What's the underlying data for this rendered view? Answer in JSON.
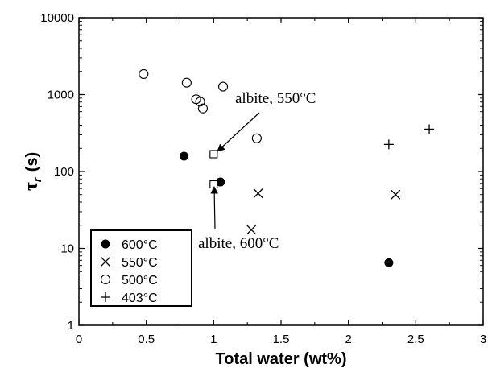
{
  "chart_data": {
    "type": "scatter",
    "xlabel": "Total water (wt%)",
    "ylabel": "τ",
    "ylabel_sub": "r",
    "ylabel_unit": "(s)",
    "xlim": [
      0,
      3
    ],
    "ylim": [
      1,
      10000
    ],
    "yscale": "log",
    "grid": false,
    "x_ticks": [
      0,
      0.5,
      1,
      1.5,
      2,
      2.5,
      3
    ],
    "x_tick_labels": [
      "0",
      "0.5",
      "1",
      "1.5",
      "2",
      "2.5",
      "3"
    ],
    "y_ticks": [
      1,
      10,
      100,
      1000,
      10000
    ],
    "y_tick_labels": [
      "1",
      "10",
      "100",
      "1000",
      "10000"
    ],
    "legend_position": "bottom-left",
    "series": [
      {
        "name": "600°C",
        "marker": "filled-circle",
        "x": [
          0.78,
          1.05,
          2.3
        ],
        "y": [
          158,
          73,
          6.5
        ]
      },
      {
        "name": "550°C",
        "marker": "x",
        "x": [
          1.28,
          1.33,
          2.35
        ],
        "y": [
          17.5,
          52,
          50
        ]
      },
      {
        "name": "500°C",
        "marker": "open-circle",
        "x": [
          0.48,
          0.8,
          0.87,
          0.9,
          0.92,
          1.07,
          1.32
        ],
        "y": [
          1850,
          1430,
          870,
          810,
          660,
          1270,
          270
        ]
      },
      {
        "name": "403°C",
        "marker": "plus",
        "x": [
          2.3,
          2.6
        ],
        "y": [
          225,
          355
        ]
      }
    ],
    "reference_points": [
      {
        "label": "albite, 550°C",
        "marker": "open-square",
        "x": 1.0,
        "y": 168
      },
      {
        "label": "albite, 600°C",
        "marker": "open-square",
        "x": 1.0,
        "y": 68
      }
    ]
  }
}
